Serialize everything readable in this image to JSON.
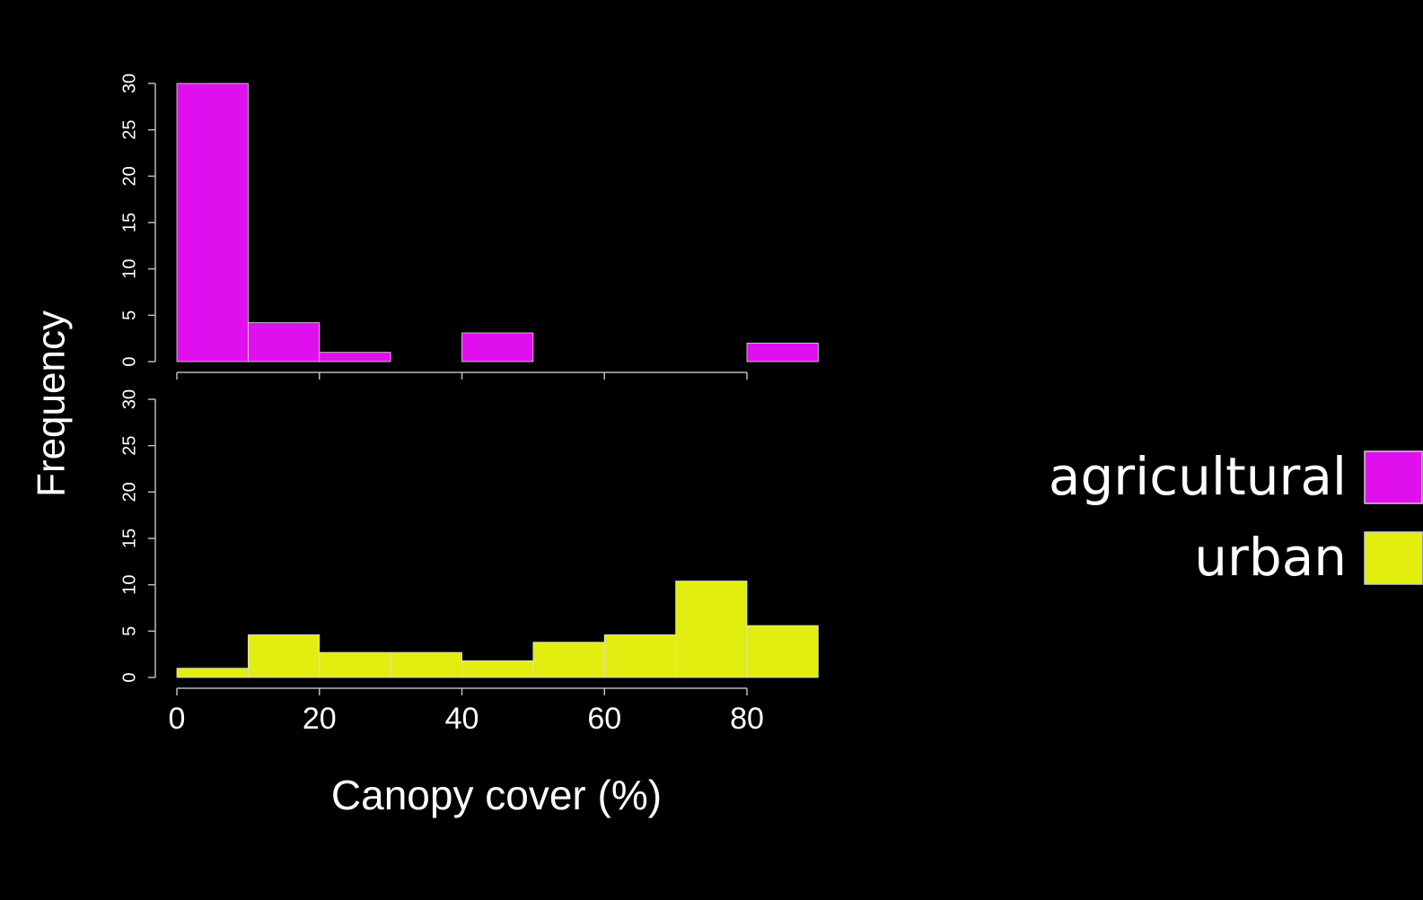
{
  "chart_data": [
    {
      "type": "histogram",
      "ylabel": "Frequency",
      "bins": [
        0,
        10,
        20,
        30,
        40,
        50,
        60,
        70,
        80,
        90
      ],
      "series": [
        {
          "name": "agricultural",
          "color": "#e010ee",
          "values": [
            30,
            4.2,
            1,
            0,
            3.1,
            0,
            0,
            0,
            2
          ]
        }
      ],
      "xlim": [
        0,
        90
      ],
      "ylim": [
        0,
        30
      ],
      "yticks": [
        0,
        5,
        10,
        15,
        20,
        25,
        30
      ]
    },
    {
      "type": "histogram",
      "xlabel": "Canopy cover (%)",
      "bins": [
        0,
        10,
        20,
        30,
        40,
        50,
        60,
        70,
        80,
        90
      ],
      "series": [
        {
          "name": "urban",
          "color": "#e2ee10",
          "values": [
            1,
            4.6,
            2.7,
            2.7,
            1.8,
            3.8,
            4.6,
            10.4,
            5.6
          ]
        }
      ],
      "xlim": [
        0,
        90
      ],
      "ylim": [
        0,
        30
      ],
      "yticks": [
        0,
        5,
        10,
        15,
        20,
        25,
        30
      ],
      "xticks": [
        0,
        20,
        40,
        60,
        80
      ]
    }
  ]
}
